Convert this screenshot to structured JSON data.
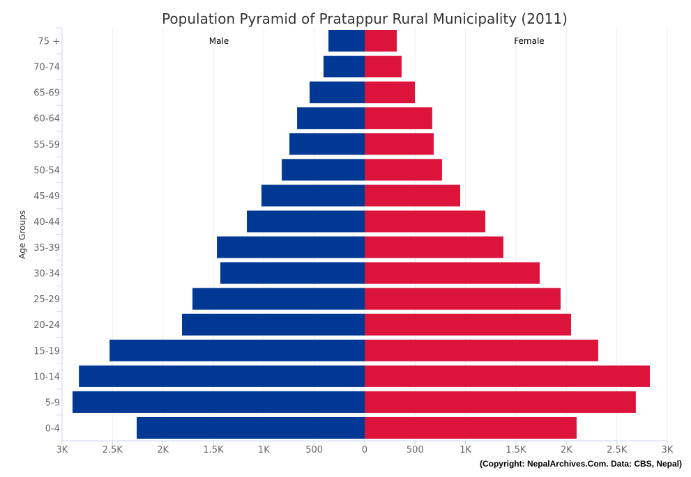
{
  "chart_data": {
    "type": "bar",
    "orientation": "horizontal",
    "title": "Population Pyramid of Pratappur Rural Municipality (2011)",
    "ylabel": "Age Groups",
    "xlabel": "",
    "categories": [
      "75 +",
      "70-74",
      "65-69",
      "60-64",
      "55-59",
      "50-54",
      "45-49",
      "40-44",
      "35-39",
      "30-34",
      "25-29",
      "20-24",
      "15-19",
      "10-14",
      "5-9",
      "0-4"
    ],
    "series": [
      {
        "name": "Male",
        "color": "#003893",
        "values": [
          359,
          408,
          546,
          670,
          746,
          822,
          1023,
          1168,
          1465,
          1431,
          1707,
          1811,
          2529,
          2833,
          2896,
          2260
        ]
      },
      {
        "name": "Female",
        "color": "#DC143C",
        "values": [
          318,
          366,
          498,
          670,
          684,
          767,
          947,
          1196,
          1375,
          1735,
          1942,
          2046,
          2315,
          2827,
          2688,
          2101
        ]
      }
    ],
    "xlim": [
      -3000,
      3000
    ],
    "xticks": [
      -3000,
      -2500,
      -2000,
      -1500,
      -1000,
      -500,
      0,
      500,
      1000,
      1500,
      2000,
      2500,
      3000
    ],
    "xtick_labels": [
      "3K",
      "2.5K",
      "2K",
      "1.5K",
      "1K",
      "500",
      "0",
      "500",
      "1K",
      "1.5K",
      "2K",
      "2.5K",
      "3K"
    ],
    "grid": true,
    "legend_placement": "inside-top"
  },
  "credit": "(Copyright: NepalArchives.Com. Data: CBS, Nepal)"
}
